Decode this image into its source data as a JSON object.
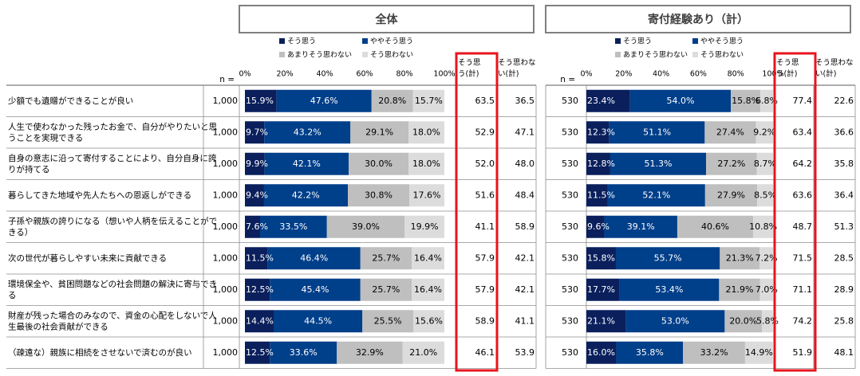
{
  "chart_data": {
    "type": "bar",
    "n_label": "n =",
    "legend": [
      {
        "name": "そう思う",
        "color": "#0a1f5c"
      },
      {
        "name": "ややそう思う",
        "color": "#003f8a"
      },
      {
        "name": "あまりそう思わない",
        "color": "#bfbfbf"
      },
      {
        "name": "そう思わない",
        "color": "#dcdcdc"
      }
    ],
    "ticks": [
      "0%",
      "20%",
      "40%",
      "60%",
      "80%",
      "100%"
    ],
    "xlim": [
      0,
      100
    ],
    "sum_headers": [
      "そう思う(計)",
      "そう思わない(計)"
    ],
    "categories": [
      "少額でも遺贈ができることが良い",
      "人生で使わなかった残ったお金で、自分がやりたいと思うことを実現できる",
      "自身の意志に沿って寄付することにより、自分自身に誇りが持てる",
      "暮らしてきた地域や先人たちへの恩返しができる",
      "子孫や親族の誇りになる（想いや人柄を伝えることができる）",
      "次の世代が暮らしやすい未来に貢献できる",
      "環境保全や、貧困問題などの社会問題の解決に寄与できる",
      "財産が残った場合のみなので、資金の心配をしないで人生最後の社会貢献ができる",
      "（疎遠な）親族に相続をさせないで済むのが良い"
    ],
    "panels": [
      {
        "title": "全体",
        "n": [
          "1,000",
          "1,000",
          "1,000",
          "1,000",
          "1,000",
          "1,000",
          "1,000",
          "1,000",
          "1,000"
        ],
        "series": [
          {
            "name": "そう思う",
            "values": [
              15.9,
              9.7,
              9.9,
              9.4,
              7.6,
              11.5,
              12.5,
              14.4,
              12.5
            ]
          },
          {
            "name": "ややそう思う",
            "values": [
              47.6,
              43.2,
              42.1,
              42.2,
              33.5,
              46.4,
              45.4,
              44.5,
              33.6
            ]
          },
          {
            "name": "あまりそう思わない",
            "values": [
              20.8,
              29.1,
              30.0,
              30.8,
              39.0,
              25.7,
              25.7,
              25.5,
              32.9
            ]
          },
          {
            "name": "そう思わない",
            "values": [
              15.7,
              18.0,
              18.0,
              17.6,
              19.9,
              16.4,
              16.4,
              15.6,
              21.0
            ]
          }
        ],
        "agree_total": [
          "63.5",
          "52.9",
          "52.0",
          "51.6",
          "41.1",
          "57.9",
          "57.9",
          "58.9",
          "46.1"
        ],
        "disagree_total": [
          "36.5",
          "47.1",
          "48.0",
          "48.4",
          "58.9",
          "42.1",
          "42.1",
          "41.1",
          "53.9"
        ]
      },
      {
        "title": "寄付経験あり（計）",
        "n": [
          "530",
          "530",
          "530",
          "530",
          "530",
          "530",
          "530",
          "530",
          "530"
        ],
        "series": [
          {
            "name": "そう思う",
            "values": [
              23.4,
              12.3,
              12.8,
              11.5,
              9.6,
              15.8,
              17.7,
              21.1,
              16.0
            ]
          },
          {
            "name": "ややそう思う",
            "values": [
              54.0,
              51.1,
              51.3,
              52.1,
              39.1,
              55.7,
              53.4,
              53.0,
              35.8
            ]
          },
          {
            "name": "あまりそう思わない",
            "values": [
              15.8,
              27.4,
              27.2,
              27.9,
              40.6,
              21.3,
              21.9,
              20.0,
              33.2
            ]
          },
          {
            "name": "そう思わない",
            "values": [
              6.8,
              9.2,
              8.7,
              8.5,
              10.8,
              7.2,
              7.0,
              5.8,
              14.9
            ]
          }
        ],
        "agree_total": [
          "77.4",
          "63.4",
          "64.2",
          "63.6",
          "48.7",
          "71.5",
          "71.1",
          "74.2",
          "51.9"
        ],
        "disagree_total": [
          "22.6",
          "36.6",
          "35.8",
          "36.4",
          "51.3",
          "28.5",
          "28.9",
          "25.8",
          "48.1"
        ]
      }
    ]
  }
}
